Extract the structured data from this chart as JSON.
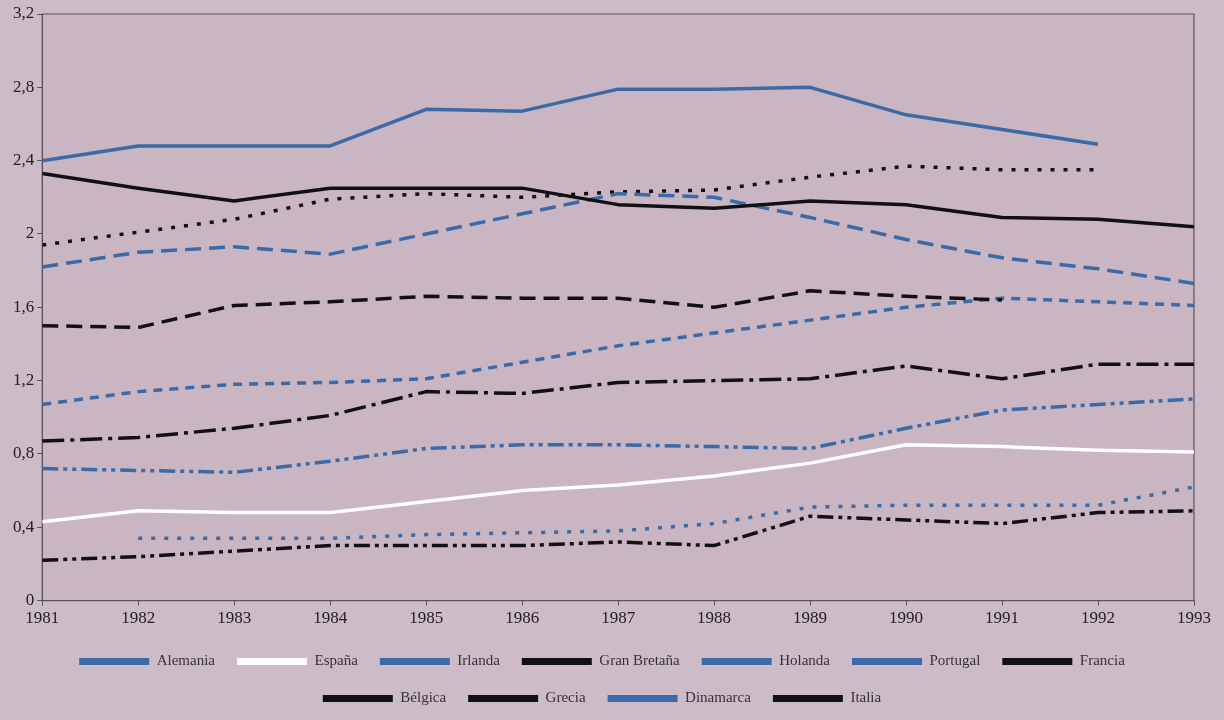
{
  "chart_data": {
    "type": "line",
    "x": [
      1981,
      1982,
      1983,
      1984,
      1985,
      1986,
      1987,
      1988,
      1989,
      1990,
      1991,
      1992,
      1993
    ],
    "xlim": [
      1981,
      1993
    ],
    "xticks": [
      1981,
      1982,
      1983,
      1984,
      1985,
      1986,
      1987,
      1988,
      1989,
      1990,
      1991,
      1992,
      1993
    ],
    "ylim": [
      0,
      3.2
    ],
    "yticks": [
      0,
      {
        "value": 0.4,
        "label": "0,4"
      },
      {
        "value": 0.8,
        "label": "0,8"
      },
      {
        "value": 1.2,
        "label": "1,2"
      },
      {
        "value": 1.6,
        "label": "1,6"
      },
      2,
      {
        "value": 2.4,
        "label": "2,4"
      },
      {
        "value": 2.8,
        "label": "2,8"
      },
      {
        "value": 3.2,
        "label": "3,2"
      }
    ],
    "grid": false,
    "legend": "bottom",
    "marker": "none",
    "series": [
      {
        "name": "Alemania",
        "color": "#3a6aa8",
        "line_style": "solid",
        "values": [
          2.4,
          2.48,
          2.48,
          2.48,
          2.68,
          2.67,
          2.79,
          2.79,
          2.8,
          2.65,
          2.57,
          2.49,
          null
        ]
      },
      {
        "name": "España",
        "color": "#ffffff",
        "line_style": "solid",
        "values": [
          0.43,
          0.49,
          0.48,
          0.48,
          0.54,
          0.6,
          0.63,
          0.68,
          0.75,
          0.85,
          0.84,
          0.82,
          0.81
        ]
      },
      {
        "name": "Irlanda",
        "color": "#3a6aa8",
        "line_style": "dashdotdot",
        "values": [
          0.72,
          0.71,
          0.7,
          0.76,
          0.83,
          0.85,
          0.85,
          0.84,
          0.83,
          0.94,
          1.04,
          1.07,
          1.1
        ]
      },
      {
        "name": "Gran Bretaña",
        "color": "#111111",
        "line_style": "solid",
        "values": [
          2.33,
          2.25,
          2.18,
          2.25,
          2.25,
          2.25,
          2.16,
          2.14,
          2.18,
          2.16,
          2.09,
          2.08,
          2.04
        ]
      },
      {
        "name": "Holanda",
        "color": "#3a6aa8",
        "line_style": "dashed",
        "values": [
          1.82,
          1.9,
          1.93,
          1.89,
          2.0,
          2.11,
          2.22,
          2.2,
          2.09,
          1.97,
          1.87,
          1.81,
          1.73
        ]
      },
      {
        "name": "Portugal",
        "color": "#3a6aa8",
        "line_style": "dotted",
        "values": [
          null,
          0.34,
          0.34,
          0.34,
          0.36,
          0.37,
          0.38,
          0.42,
          0.51,
          0.52,
          0.52,
          0.52,
          0.62
        ]
      },
      {
        "name": "Francia",
        "color": "#111111",
        "line_style": "dotted",
        "values": [
          1.94,
          2.01,
          2.08,
          2.19,
          2.22,
          2.2,
          2.23,
          2.24,
          2.31,
          2.37,
          2.35,
          2.35,
          null
        ]
      },
      {
        "name": "Bélgica",
        "color": "#111111",
        "line_style": "dashed",
        "values": [
          1.5,
          1.49,
          1.61,
          1.63,
          1.66,
          1.65,
          1.65,
          1.6,
          1.69,
          1.66,
          1.64,
          null,
          null
        ]
      },
      {
        "name": "Grecia",
        "color": "#111111",
        "line_style": "dashdotdot",
        "values": [
          0.22,
          0.24,
          0.27,
          0.3,
          0.3,
          0.3,
          0.32,
          0.3,
          0.46,
          0.44,
          0.42,
          0.48,
          0.49
        ]
      },
      {
        "name": "Dinamarca",
        "color": "#3a6aa8",
        "line_style": "shortdash",
        "values": [
          1.07,
          1.14,
          1.18,
          1.19,
          1.21,
          1.3,
          1.39,
          1.46,
          1.53,
          1.6,
          1.65,
          1.63,
          1.61
        ]
      },
      {
        "name": "Italia",
        "color": "#111111",
        "line_style": "dashdot",
        "values": [
          0.87,
          0.89,
          0.94,
          1.01,
          1.14,
          1.13,
          1.19,
          1.2,
          1.21,
          1.28,
          1.21,
          1.29,
          1.29
        ]
      }
    ]
  }
}
